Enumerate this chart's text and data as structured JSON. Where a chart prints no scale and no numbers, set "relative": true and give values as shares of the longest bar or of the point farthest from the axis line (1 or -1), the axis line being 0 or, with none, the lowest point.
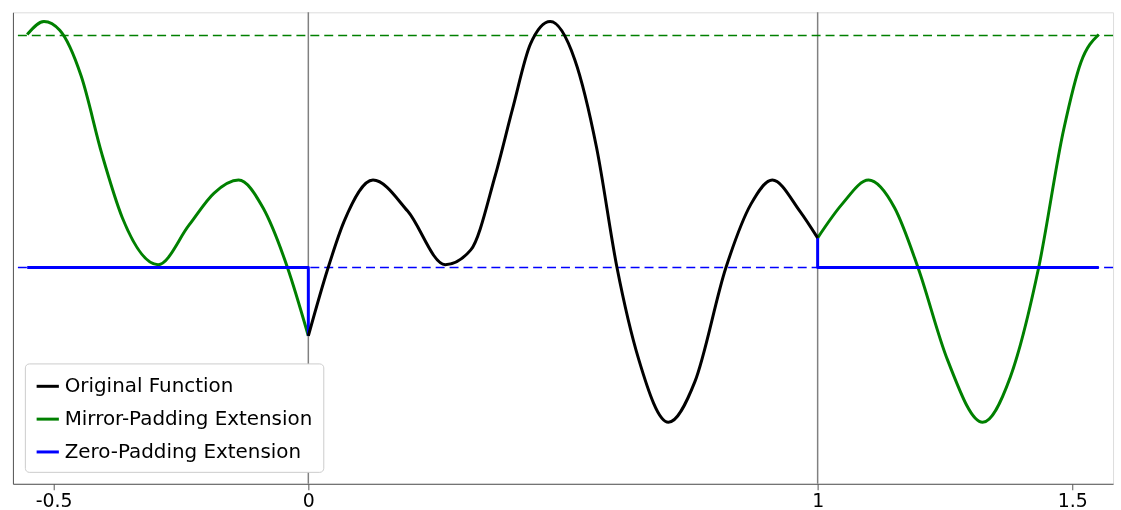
{
  "chart_data": {
    "type": "line",
    "relative": true,
    "xlim": [
      -0.58,
      1.58
    ],
    "xticks": [
      {
        "value": -0.5,
        "label": "-0.5"
      },
      {
        "value": 0,
        "label": "0"
      },
      {
        "value": 1,
        "label": "1"
      },
      {
        "value": 1.5,
        "label": "1.5"
      }
    ],
    "grid": false,
    "legend": "bottom left",
    "tick_labels": "x",
    "series": [
      {
        "name": "Original Function",
        "color": "#000000",
        "x": [
          0,
          0.039,
          0.07,
          0.127,
          0.195,
          0.269,
          0.319,
          0.367,
          0.401,
          0.436,
          0.475,
          0.523,
          0.566,
          0.606,
          0.649,
          0.707,
          0.759,
          0.82,
          0.869,
          0.911,
          0.965,
          1.0
        ],
        "values": [
          0.32,
          0.468,
          0.567,
          0.657,
          0.59,
          0.474,
          0.506,
          0.667,
          0.811,
          0.951,
          1.0,
          0.918,
          0.727,
          0.468,
          0.268,
          0.133,
          0.221,
          0.468,
          0.605,
          0.657,
          0.59,
          0.532
        ]
      },
      {
        "name": "Mirror-Padding Extension",
        "color": "#008000",
        "x": [
          -0.552,
          -0.519,
          -0.488,
          -0.446,
          -0.405,
          -0.365,
          -0.295,
          -0.234,
          -0.185,
          -0.137,
          -0.089,
          -0.041,
          0,
          null,
          1.0,
          1.048,
          1.1,
          1.151,
          1.197,
          1.255,
          1.324,
          1.378,
          1.434,
          1.483,
          1.517,
          1.552
        ],
        "values": [
          0.972,
          1.0,
          0.981,
          0.882,
          0.712,
          0.575,
          0.474,
          0.56,
          0.629,
          0.657,
          0.597,
          0.468,
          0.32,
          null,
          0.532,
          0.605,
          0.657,
          0.597,
          0.468,
          0.268,
          0.133,
          0.23,
          0.468,
          0.766,
          0.912,
          0.972
        ]
      },
      {
        "name": "Zero-Padding Extension",
        "color": "#0000ff",
        "x": [
          -0.552,
          0,
          0,
          null,
          1,
          1,
          1.552
        ],
        "values": [
          0.468,
          0.468,
          0.32,
          null,
          0.532,
          0.468,
          0.468
        ]
      }
    ],
    "ref_lines": [
      {
        "axis": "x",
        "value": 0,
        "color": "#808080"
      },
      {
        "axis": "x",
        "value": 1,
        "color": "#808080"
      },
      {
        "axis": "y",
        "value": 0.97,
        "color": "#008000",
        "line_style": "dashed"
      },
      {
        "axis": "y",
        "value": 0.468,
        "color": "#0000ff",
        "line_style": "dashed"
      }
    ]
  }
}
